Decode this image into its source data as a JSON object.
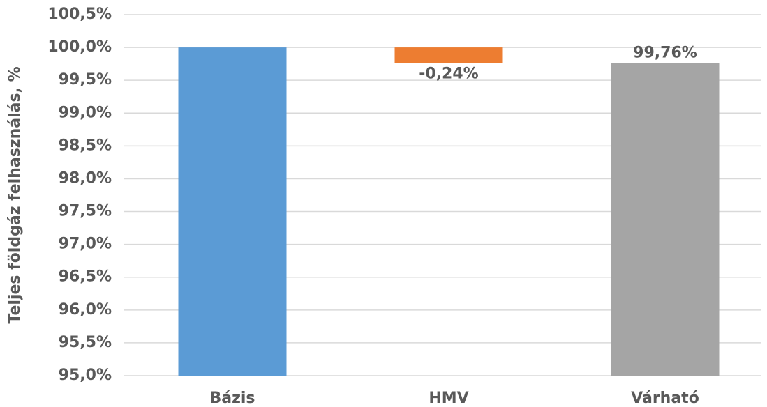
{
  "chart_data": {
    "type": "waterfall",
    "y_axis_label": "Teljes földgáz felhasználás, %",
    "categories": [
      "Bázis",
      "HMV",
      "Várható"
    ],
    "values": [
      100,
      -0.24,
      99.76
    ],
    "value_labels": [
      null,
      "-0,24%",
      "99,76%"
    ],
    "colors": [
      "#5b9bd5",
      "#ed7d31",
      "#a5a5a5"
    ],
    "ylim": [
      95,
      100.5
    ],
    "yticks": [
      {
        "value": 95,
        "label": "95,0%"
      },
      {
        "value": 95.5,
        "label": "95,5%"
      },
      {
        "value": 96,
        "label": "96,0%"
      },
      {
        "value": 96.5,
        "label": "96,5%"
      },
      {
        "value": 97,
        "label": "97,0%"
      },
      {
        "value": 97.5,
        "label": "97,5%"
      },
      {
        "value": 98,
        "label": "98,0%"
      },
      {
        "value": 98.5,
        "label": "98,5%"
      },
      {
        "value": 99,
        "label": "99,0%"
      },
      {
        "value": 99.5,
        "label": "99,5%"
      },
      {
        "value": 100,
        "label": "100,0%"
      },
      {
        "value": 100.5,
        "label": "100,5%"
      }
    ],
    "grid": true
  }
}
